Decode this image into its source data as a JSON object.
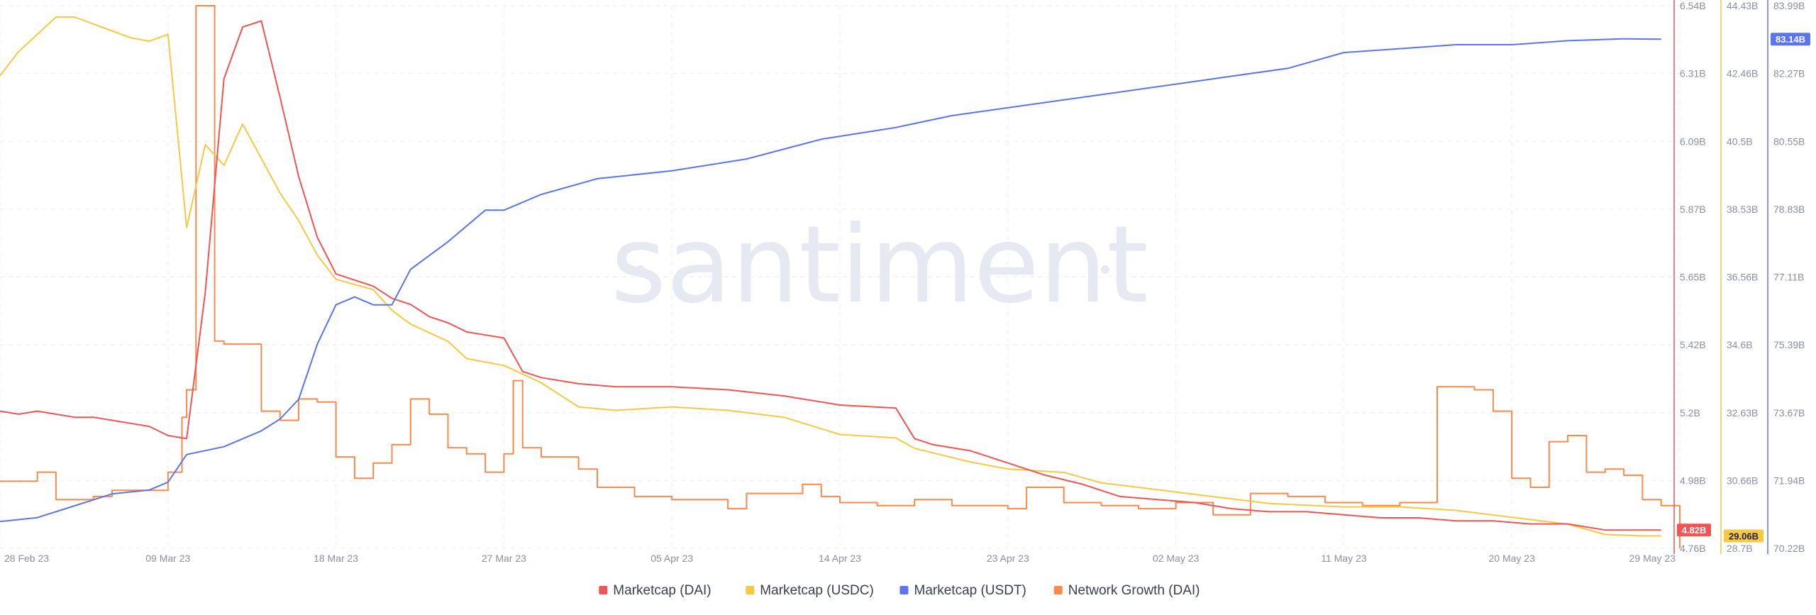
{
  "watermark": "santiment",
  "chart_data": {
    "type": "line",
    "x_range": [
      "2023-02-28",
      "2023-05-29"
    ],
    "x_ticks": [
      {
        "label": "28 Feb 23",
        "date": "2023-02-28"
      },
      {
        "label": "09 Mar 23",
        "date": "2023-03-09"
      },
      {
        "label": "18 Mar 23",
        "date": "2023-03-18"
      },
      {
        "label": "27 Mar 23",
        "date": "2023-03-27"
      },
      {
        "label": "05 Apr 23",
        "date": "2023-04-05"
      },
      {
        "label": "14 Apr 23",
        "date": "2023-04-14"
      },
      {
        "label": "23 Apr 23",
        "date": "2023-04-23"
      },
      {
        "label": "02 May 23",
        "date": "2023-05-02"
      },
      {
        "label": "11 May 23",
        "date": "2023-05-11"
      },
      {
        "label": "20 May 23",
        "date": "2023-05-20"
      },
      {
        "label": "29 May 23",
        "date": "2023-05-29"
      }
    ],
    "grid": true,
    "legend_position": "bottom-center",
    "axes": [
      {
        "id": "dai",
        "color": "#f05454",
        "range": [
          4.76,
          6.54
        ],
        "unit": "B",
        "ticks": [
          "6.54B",
          "6.31B",
          "6.09B",
          "5.87B",
          "5.65B",
          "5.42B",
          "5.2B",
          "4.98B",
          "4.76B"
        ]
      },
      {
        "id": "usdc",
        "color": "#f7c844",
        "range": [
          28.7,
          44.43
        ],
        "unit": "B",
        "ticks": [
          "44.43B",
          "42.46B",
          "40.5B",
          "38.53B",
          "36.56B",
          "34.6B",
          "32.63B",
          "30.66B",
          "28.7B"
        ]
      },
      {
        "id": "usdt",
        "color": "#5b74f0",
        "range": [
          70.22,
          83.99
        ],
        "unit": "B",
        "ticks": [
          "83.99B",
          "82.27B",
          "80.55B",
          "78.83B",
          "77.11B",
          "75.39B",
          "73.67B",
          "71.94B",
          "70.22B"
        ]
      }
    ],
    "current_badges": [
      {
        "axis": "dai",
        "label": "4.82B",
        "value": 4.82,
        "bg": "#f05454",
        "fg": "#ffffff"
      },
      {
        "axis": "usdc",
        "label": "29.06B",
        "value": 29.06,
        "bg": "#f7c844",
        "fg": "#1f2333"
      },
      {
        "axis": "usdt",
        "label": "83.14B",
        "value": 83.14,
        "bg": "#5b74f0",
        "fg": "#ffffff"
      }
    ],
    "series": [
      {
        "name": "Marketcap (DAI)",
        "axis": "dai",
        "color": "#f05454",
        "step": false,
        "points": [
          [
            "2023-02-28",
            5.21
          ],
          [
            "2023-03-01",
            5.2
          ],
          [
            "2023-03-02",
            5.21
          ],
          [
            "2023-03-03",
            5.2
          ],
          [
            "2023-03-04",
            5.19
          ],
          [
            "2023-03-05",
            5.19
          ],
          [
            "2023-03-06",
            5.18
          ],
          [
            "2023-03-07",
            5.17
          ],
          [
            "2023-03-08",
            5.16
          ],
          [
            "2023-03-09",
            5.13
          ],
          [
            "2023-03-10",
            5.12
          ],
          [
            "2023-03-11",
            5.6
          ],
          [
            "2023-03-12",
            6.3
          ],
          [
            "2023-03-13",
            6.47
          ],
          [
            "2023-03-14",
            6.49
          ],
          [
            "2023-03-15",
            6.24
          ],
          [
            "2023-03-16",
            5.98
          ],
          [
            "2023-03-17",
            5.78
          ],
          [
            "2023-03-18",
            5.66
          ],
          [
            "2023-03-19",
            5.64
          ],
          [
            "2023-03-20",
            5.62
          ],
          [
            "2023-03-21",
            5.58
          ],
          [
            "2023-03-22",
            5.56
          ],
          [
            "2023-03-23",
            5.52
          ],
          [
            "2023-03-24",
            5.5
          ],
          [
            "2023-03-25",
            5.47
          ],
          [
            "2023-03-26",
            5.46
          ],
          [
            "2023-03-27",
            5.45
          ],
          [
            "2023-03-28",
            5.34
          ],
          [
            "2023-03-29",
            5.32
          ],
          [
            "2023-03-30",
            5.31
          ],
          [
            "2023-03-31",
            5.3
          ],
          [
            "2023-04-02",
            5.29
          ],
          [
            "2023-04-05",
            5.29
          ],
          [
            "2023-04-08",
            5.28
          ],
          [
            "2023-04-11",
            5.26
          ],
          [
            "2023-04-14",
            5.23
          ],
          [
            "2023-04-17",
            5.22
          ],
          [
            "2023-04-18",
            5.12
          ],
          [
            "2023-04-19",
            5.1
          ],
          [
            "2023-04-21",
            5.08
          ],
          [
            "2023-04-23",
            5.04
          ],
          [
            "2023-04-25",
            5.0
          ],
          [
            "2023-04-27",
            4.97
          ],
          [
            "2023-04-29",
            4.93
          ],
          [
            "2023-05-01",
            4.92
          ],
          [
            "2023-05-03",
            4.91
          ],
          [
            "2023-05-05",
            4.89
          ],
          [
            "2023-05-07",
            4.88
          ],
          [
            "2023-05-09",
            4.88
          ],
          [
            "2023-05-11",
            4.87
          ],
          [
            "2023-05-13",
            4.86
          ],
          [
            "2023-05-15",
            4.86
          ],
          [
            "2023-05-17",
            4.85
          ],
          [
            "2023-05-19",
            4.85
          ],
          [
            "2023-05-21",
            4.84
          ],
          [
            "2023-05-23",
            4.84
          ],
          [
            "2023-05-25",
            4.82
          ],
          [
            "2023-05-27",
            4.82
          ],
          [
            "2023-05-28",
            4.82
          ]
        ]
      },
      {
        "name": "Marketcap (USDC)",
        "axis": "usdc",
        "color": "#f7c844",
        "step": false,
        "points": [
          [
            "2023-02-28",
            42.4
          ],
          [
            "2023-03-01",
            43.1
          ],
          [
            "2023-03-02",
            43.6
          ],
          [
            "2023-03-03",
            44.1
          ],
          [
            "2023-03-04",
            44.1
          ],
          [
            "2023-03-05",
            43.9
          ],
          [
            "2023-03-06",
            43.7
          ],
          [
            "2023-03-07",
            43.5
          ],
          [
            "2023-03-08",
            43.4
          ],
          [
            "2023-03-09",
            43.6
          ],
          [
            "2023-03-10",
            38.0
          ],
          [
            "2023-03-11",
            40.4
          ],
          [
            "2023-03-12",
            39.8
          ],
          [
            "2023-03-13",
            41.0
          ],
          [
            "2023-03-14",
            40.0
          ],
          [
            "2023-03-15",
            39.0
          ],
          [
            "2023-03-16",
            38.2
          ],
          [
            "2023-03-17",
            37.2
          ],
          [
            "2023-03-18",
            36.5
          ],
          [
            "2023-03-20",
            36.2
          ],
          [
            "2023-03-21",
            35.6
          ],
          [
            "2023-03-22",
            35.2
          ],
          [
            "2023-03-24",
            34.7
          ],
          [
            "2023-03-25",
            34.2
          ],
          [
            "2023-03-26",
            34.1
          ],
          [
            "2023-03-27",
            34.0
          ],
          [
            "2023-03-29",
            33.5
          ],
          [
            "2023-03-31",
            32.8
          ],
          [
            "2023-04-02",
            32.7
          ],
          [
            "2023-04-05",
            32.8
          ],
          [
            "2023-04-08",
            32.7
          ],
          [
            "2023-04-11",
            32.5
          ],
          [
            "2023-04-14",
            32.0
          ],
          [
            "2023-04-17",
            31.9
          ],
          [
            "2023-04-18",
            31.6
          ],
          [
            "2023-04-21",
            31.2
          ],
          [
            "2023-04-23",
            31.0
          ],
          [
            "2023-04-26",
            30.9
          ],
          [
            "2023-04-28",
            30.6
          ],
          [
            "2023-05-01",
            30.4
          ],
          [
            "2023-05-04",
            30.2
          ],
          [
            "2023-05-07",
            30.0
          ],
          [
            "2023-05-11",
            29.9
          ],
          [
            "2023-05-14",
            29.9
          ],
          [
            "2023-05-17",
            29.8
          ],
          [
            "2023-05-20",
            29.6
          ],
          [
            "2023-05-23",
            29.4
          ],
          [
            "2023-05-25",
            29.1
          ],
          [
            "2023-05-27",
            29.06
          ],
          [
            "2023-05-28",
            29.06
          ]
        ]
      },
      {
        "name": "Marketcap (USDT)",
        "axis": "usdt",
        "color": "#5b74f0",
        "step": false,
        "points": [
          [
            "2023-02-28",
            70.9
          ],
          [
            "2023-03-02",
            71.0
          ],
          [
            "2023-03-04",
            71.3
          ],
          [
            "2023-03-06",
            71.6
          ],
          [
            "2023-03-08",
            71.7
          ],
          [
            "2023-03-09",
            71.9
          ],
          [
            "2023-03-10",
            72.6
          ],
          [
            "2023-03-12",
            72.8
          ],
          [
            "2023-03-14",
            73.2
          ],
          [
            "2023-03-15",
            73.5
          ],
          [
            "2023-03-16",
            74.0
          ],
          [
            "2023-03-17",
            75.4
          ],
          [
            "2023-03-18",
            76.4
          ],
          [
            "2023-03-19",
            76.6
          ],
          [
            "2023-03-20",
            76.4
          ],
          [
            "2023-03-21",
            76.4
          ],
          [
            "2023-03-22",
            77.3
          ],
          [
            "2023-03-24",
            78.0
          ],
          [
            "2023-03-26",
            78.8
          ],
          [
            "2023-03-27",
            78.8
          ],
          [
            "2023-03-29",
            79.2
          ],
          [
            "2023-04-01",
            79.6
          ],
          [
            "2023-04-05",
            79.8
          ],
          [
            "2023-04-09",
            80.1
          ],
          [
            "2023-04-13",
            80.6
          ],
          [
            "2023-04-17",
            80.9
          ],
          [
            "2023-04-20",
            81.2
          ],
          [
            "2023-04-23",
            81.4
          ],
          [
            "2023-04-26",
            81.6
          ],
          [
            "2023-04-29",
            81.8
          ],
          [
            "2023-05-02",
            82.0
          ],
          [
            "2023-05-05",
            82.2
          ],
          [
            "2023-05-08",
            82.4
          ],
          [
            "2023-05-11",
            82.8
          ],
          [
            "2023-05-14",
            82.9
          ],
          [
            "2023-05-17",
            83.0
          ],
          [
            "2023-05-20",
            83.0
          ],
          [
            "2023-05-23",
            83.1
          ],
          [
            "2023-05-26",
            83.15
          ],
          [
            "2023-05-28",
            83.14
          ]
        ]
      },
      {
        "name": "Network Growth (DAI)",
        "axis": "dai",
        "color": "#f98a4d",
        "step": true,
        "points": [
          [
            "2023-02-28",
            4.98
          ],
          [
            "2023-03-01",
            4.98
          ],
          [
            "2023-03-02",
            5.01
          ],
          [
            "2023-03-03",
            4.92
          ],
          [
            "2023-03-05",
            4.93
          ],
          [
            "2023-03-06",
            4.95
          ],
          [
            "2023-03-09",
            5.01
          ],
          [
            "2023-03-09T18:00",
            5.19
          ],
          [
            "2023-03-10",
            5.28
          ],
          [
            "2023-03-10T12:00",
            6.54
          ],
          [
            "2023-03-11",
            6.54
          ],
          [
            "2023-03-11T12:00",
            5.44
          ],
          [
            "2023-03-12",
            5.43
          ],
          [
            "2023-03-14",
            5.21
          ],
          [
            "2023-03-15",
            5.18
          ],
          [
            "2023-03-16",
            5.25
          ],
          [
            "2023-03-17",
            5.24
          ],
          [
            "2023-03-18",
            5.06
          ],
          [
            "2023-03-19",
            4.99
          ],
          [
            "2023-03-20",
            5.04
          ],
          [
            "2023-03-21",
            5.1
          ],
          [
            "2023-03-22",
            5.25
          ],
          [
            "2023-03-23",
            5.2
          ],
          [
            "2023-03-24",
            5.09
          ],
          [
            "2023-03-25",
            5.07
          ],
          [
            "2023-03-26",
            5.01
          ],
          [
            "2023-03-27",
            5.07
          ],
          [
            "2023-03-27T12:00",
            5.31
          ],
          [
            "2023-03-28",
            5.09
          ],
          [
            "2023-03-29",
            5.06
          ],
          [
            "2023-03-31",
            5.02
          ],
          [
            "2023-04-01",
            4.96
          ],
          [
            "2023-04-03",
            4.93
          ],
          [
            "2023-04-05",
            4.92
          ],
          [
            "2023-04-07",
            4.92
          ],
          [
            "2023-04-08",
            4.89
          ],
          [
            "2023-04-09",
            4.94
          ],
          [
            "2023-04-12",
            4.97
          ],
          [
            "2023-04-13",
            4.93
          ],
          [
            "2023-04-14",
            4.91
          ],
          [
            "2023-04-16",
            4.9
          ],
          [
            "2023-04-18",
            4.92
          ],
          [
            "2023-04-20",
            4.9
          ],
          [
            "2023-04-23",
            4.89
          ],
          [
            "2023-04-24",
            4.96
          ],
          [
            "2023-04-26",
            4.91
          ],
          [
            "2023-04-28",
            4.9
          ],
          [
            "2023-04-30",
            4.89
          ],
          [
            "2023-05-02",
            4.91
          ],
          [
            "2023-05-04",
            4.87
          ],
          [
            "2023-05-06",
            4.94
          ],
          [
            "2023-05-08",
            4.93
          ],
          [
            "2023-05-10",
            4.91
          ],
          [
            "2023-05-12",
            4.9
          ],
          [
            "2023-05-14",
            4.91
          ],
          [
            "2023-05-16",
            5.29
          ],
          [
            "2023-05-18",
            5.28
          ],
          [
            "2023-05-19",
            5.21
          ],
          [
            "2023-05-20",
            4.99
          ],
          [
            "2023-05-21",
            4.96
          ],
          [
            "2023-05-22",
            5.11
          ],
          [
            "2023-05-23",
            5.13
          ],
          [
            "2023-05-24",
            5.01
          ],
          [
            "2023-05-25",
            5.02
          ],
          [
            "2023-05-26",
            5.0
          ],
          [
            "2023-05-27",
            4.92
          ],
          [
            "2023-05-28",
            4.9
          ],
          [
            "2023-05-29",
            4.76
          ]
        ]
      }
    ]
  }
}
